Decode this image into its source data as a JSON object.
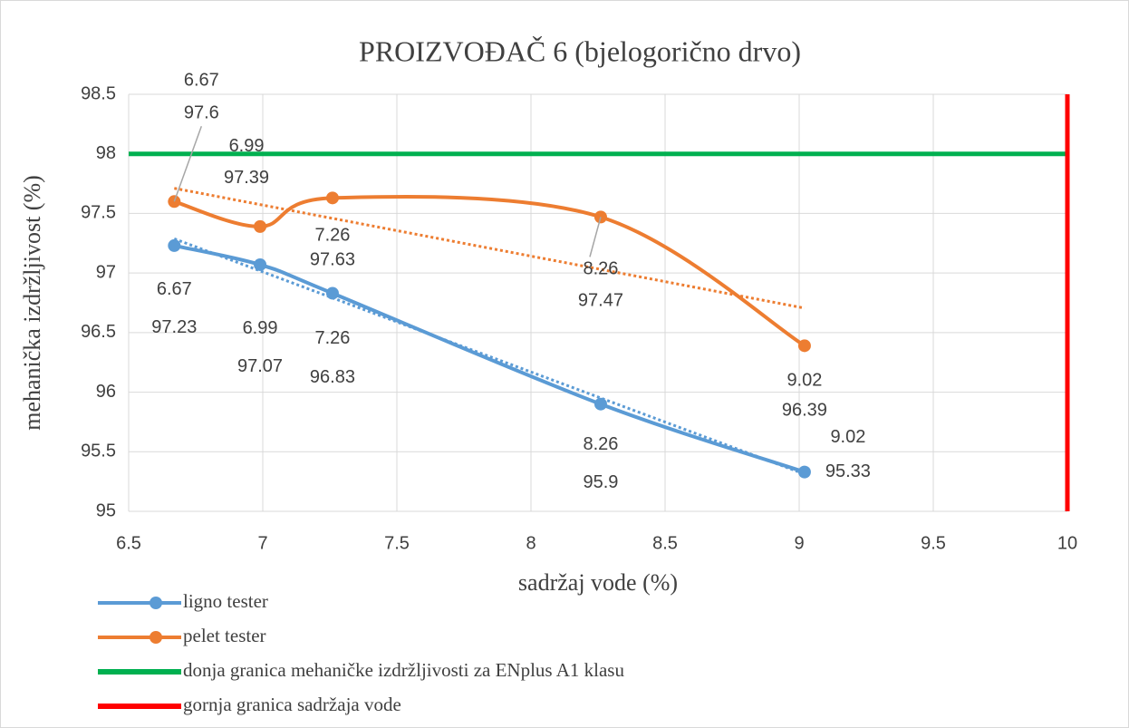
{
  "chart_data": {
    "type": "scatter",
    "title": "PROIZVOĐAČ 6 (bjelogorično drvo)",
    "x_label": "sadržaj vode (%)",
    "y_label": "mehanička izdržljivost (%)",
    "xlim": [
      6.5,
      10
    ],
    "xticks": [
      6.5,
      7,
      7.5,
      8,
      8.5,
      9,
      9.5,
      10
    ],
    "ylim": [
      95,
      98.5
    ],
    "yticks": [
      95,
      95.5,
      96,
      96.5,
      97,
      97.5,
      98,
      98.5
    ],
    "grid": true,
    "smooth": true,
    "legend": "bottom",
    "series": [
      {
        "name": "ligno tester",
        "color": "#5b9bd5",
        "trendline": "linear",
        "x": [
          6.67,
          6.99,
          7.26,
          8.26,
          9.02
        ],
        "values": [
          97.23,
          97.07,
          96.83,
          95.9,
          95.33
        ]
      },
      {
        "name": "pelet tester",
        "color": "#ed7d31",
        "trendline": "linear",
        "x": [
          6.67,
          6.99,
          7.26,
          8.26,
          9.02
        ],
        "values": [
          97.6,
          97.39,
          97.63,
          97.47,
          96.39
        ]
      }
    ],
    "reference_lines": [
      {
        "name": "donja granica mehaničke izdržljivosti za ENplus A1 klasu",
        "color": "#00b050",
        "axis": "y",
        "value": 98
      },
      {
        "name": "gornja granica sadržaja vode",
        "color": "#ff0000",
        "axis": "x",
        "value": 10
      }
    ]
  }
}
